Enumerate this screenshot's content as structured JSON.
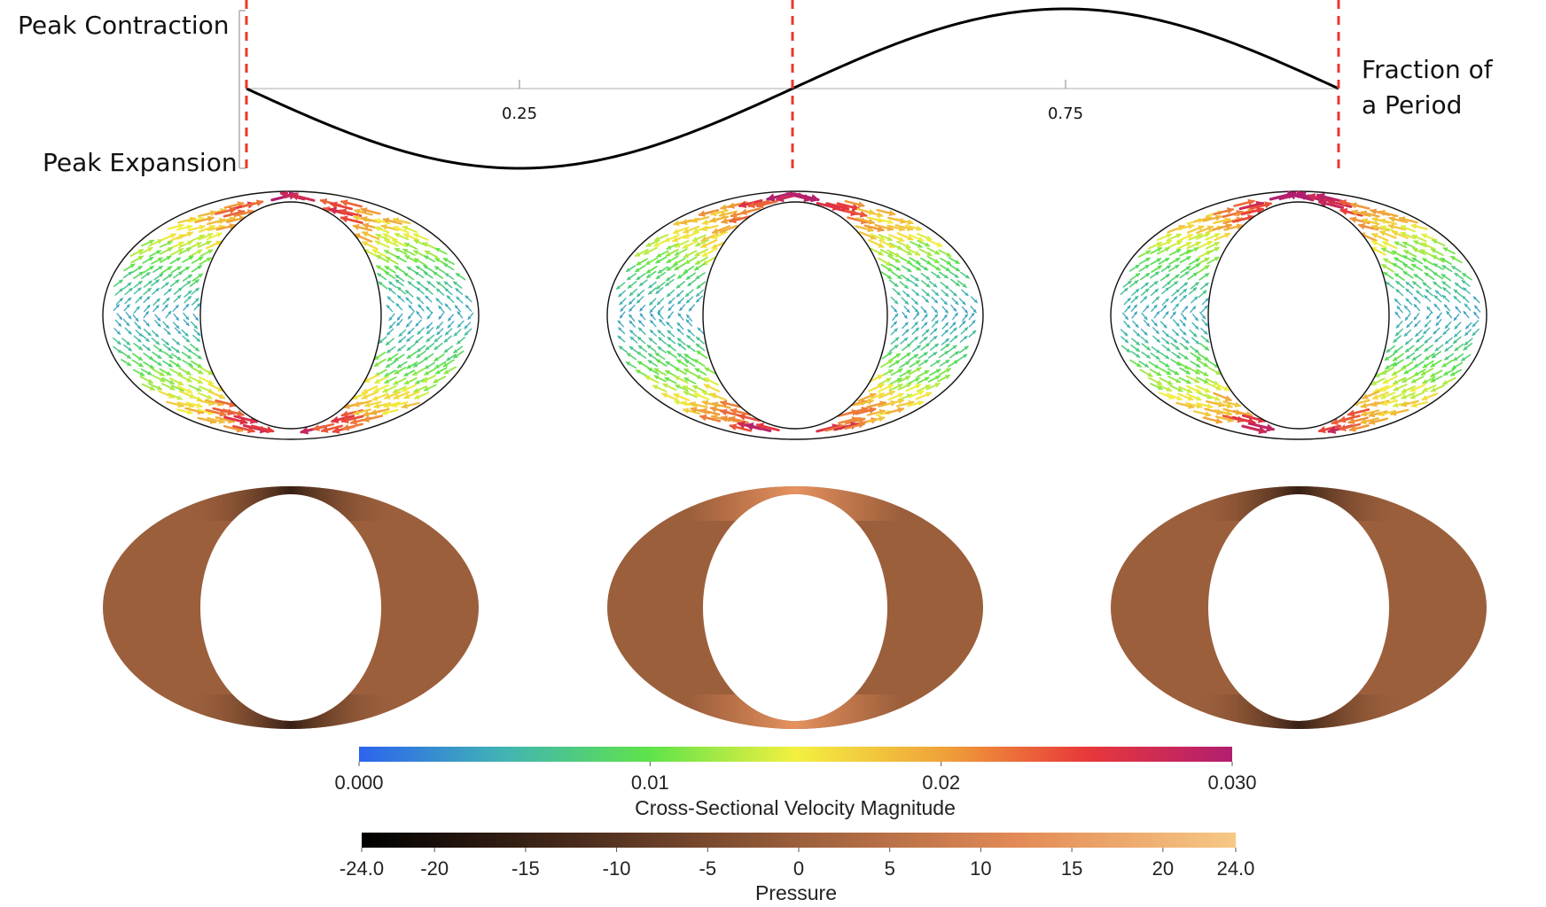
{
  "waveform": {
    "y_top_label": "Peak Contraction",
    "y_bottom_label": "Peak Expansion",
    "x_label_line1": "Fraction of",
    "x_label_line2": "a Period",
    "x_ticks": [
      "0.25",
      "0.75"
    ],
    "tick_values": [
      0.25,
      0.75
    ],
    "marker_fractions": [
      0,
      0.5,
      1.0
    ],
    "line_color": "#000000",
    "marker_color": "#e8392b"
  },
  "panels": {
    "phases": [
      0,
      0.5,
      1.0
    ],
    "pressure_base_color": "#9b5f3c"
  },
  "velocity_colorbar": {
    "title": "Cross-Sectional Velocity Magnitude",
    "ticks": [
      "0.000",
      "0.01",
      "0.02",
      "0.030"
    ],
    "tick_values": [
      0.0,
      0.01,
      0.02,
      0.03
    ],
    "range": [
      0.0,
      0.03
    ],
    "stops": [
      "#2d63ef",
      "#41b4b3",
      "#5fe34a",
      "#f3f040",
      "#f0a33a",
      "#e8383a",
      "#b21e6f"
    ]
  },
  "pressure_colorbar": {
    "title": "Pressure",
    "ticks": [
      "-24.0",
      "-20",
      "-15",
      "-10",
      "-5",
      "0",
      "5",
      "10",
      "15",
      "20",
      "24.0"
    ],
    "tick_values": [
      -24,
      -20,
      -15,
      -10,
      -5,
      0,
      5,
      10,
      15,
      20,
      24
    ],
    "range": [
      -24,
      24
    ],
    "stops": [
      "#000000",
      "#4a2c1c",
      "#9b5f3c",
      "#e38a57",
      "#f7c885"
    ]
  }
}
